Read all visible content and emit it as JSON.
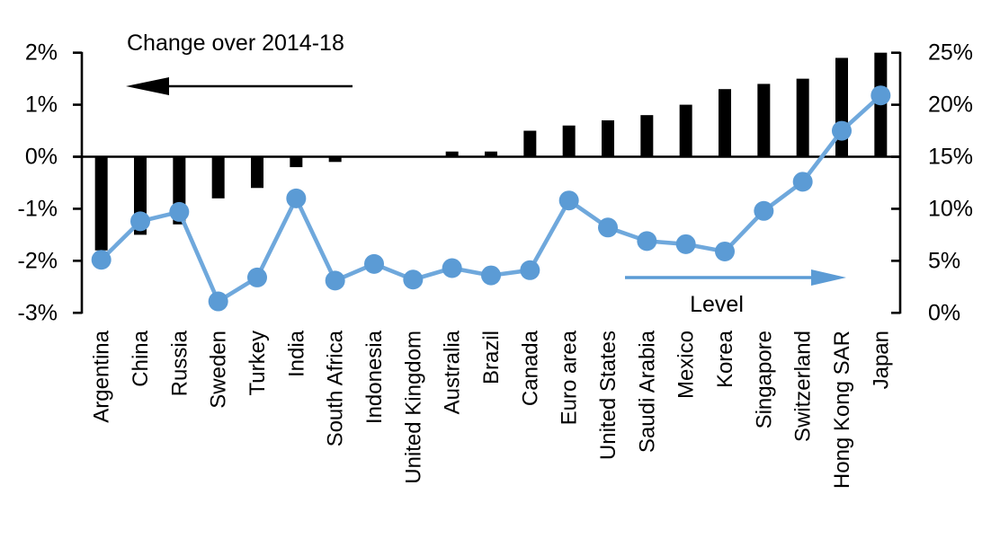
{
  "chart_data": {
    "type": "combo",
    "categories": [
      "Argentina",
      "China",
      "Russia",
      "Sweden",
      "Turkey",
      "India",
      "South Africa",
      "Indonesia",
      "United Kingdom",
      "Australia",
      "Brazil",
      "Canada",
      "Euro area",
      "United States",
      "Saudi Arabia",
      "Mexico",
      "Korea",
      "Singapore",
      "Switzerland",
      "Hong Kong SAR",
      "Japan"
    ],
    "series": [
      {
        "name": "Change over 2014-18",
        "type": "bar",
        "axis": "left",
        "values": [
          -1.8,
          -1.5,
          -1.3,
          -0.8,
          -0.6,
          -0.2,
          -0.1,
          0,
          0,
          0.1,
          0.1,
          0.5,
          0.6,
          0.7,
          0.8,
          1.0,
          1.3,
          1.4,
          1.5,
          1.9,
          2.0
        ]
      },
      {
        "name": "Level",
        "type": "line",
        "axis": "right",
        "values": [
          5.1,
          8.8,
          9.7,
          1.1,
          3.4,
          11.0,
          3.1,
          4.7,
          3.2,
          4.3,
          3.6,
          4.1,
          10.8,
          8.2,
          6.9,
          6.6,
          5.9,
          9.8,
          12.6,
          17.5,
          20.9
        ]
      }
    ],
    "left_axis": {
      "tick_labels": [
        "2%",
        "1%",
        "0%",
        "-1%",
        "-2%",
        "-3%"
      ],
      "tick_values": [
        2,
        1,
        0,
        -1,
        -2,
        -3
      ],
      "range": [
        -3,
        2
      ]
    },
    "right_axis": {
      "tick_labels": [
        "25%",
        "20%",
        "15%",
        "10%",
        "5%",
        "0%"
      ],
      "tick_values": [
        25,
        20,
        15,
        10,
        5,
        0
      ],
      "range": [
        0,
        25
      ]
    },
    "annotations": {
      "bar_label": "Change over 2014-18",
      "line_label": "Level",
      "bar_arrow_direction": "left",
      "line_arrow_direction": "right"
    },
    "grid": false,
    "legend_position": "annotated-arrows"
  },
  "colors": {
    "bar": "#000000",
    "line": "#6FA8DC",
    "marker": "#5B9BD5",
    "axis": "#000000",
    "background": "#FFFFFF"
  }
}
